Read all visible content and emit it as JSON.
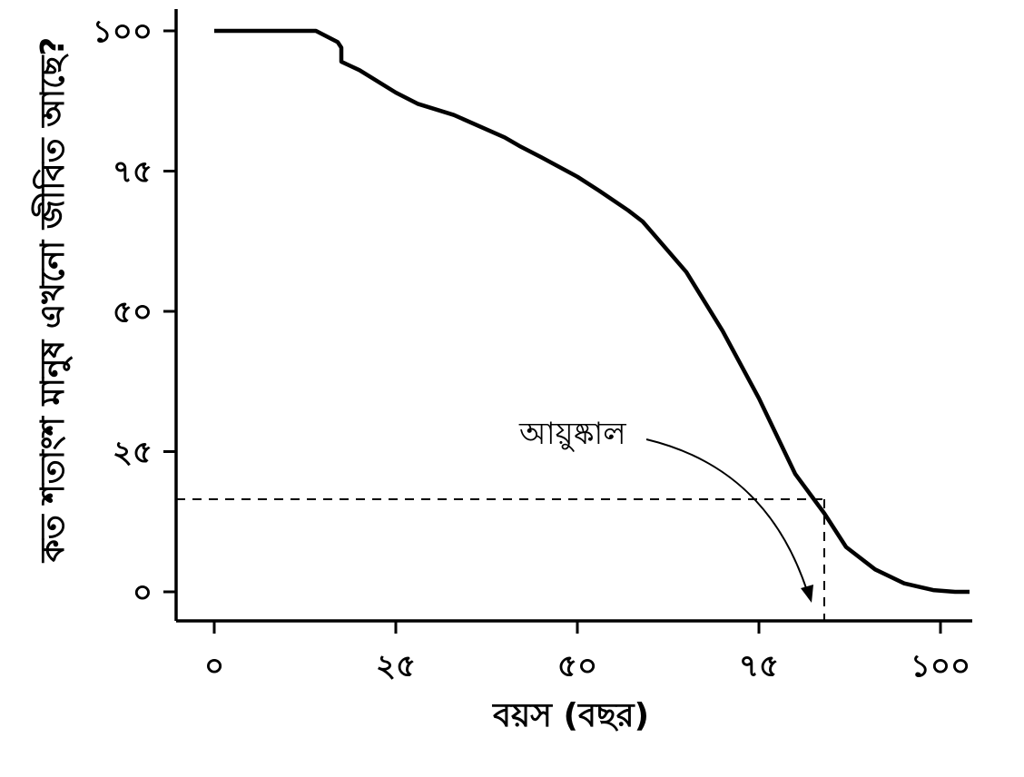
{
  "chart_data": {
    "type": "line",
    "title": "",
    "xlabel": "বয়স (বছর)",
    "ylabel": "কত শতাংশ মানুষ এখনো জীবিত আছে?",
    "xlim": [
      -10,
      104
    ],
    "ylim": [
      -5,
      104
    ],
    "x_ticks": [
      0,
      25,
      50,
      75,
      100
    ],
    "x_tick_labels": [
      "০",
      "২৫",
      "৫০",
      "৭৫",
      "১০০"
    ],
    "y_ticks": [
      0,
      25,
      50,
      75,
      100
    ],
    "y_tick_labels": [
      "০",
      "২৫",
      "৫০",
      "৭৫",
      "১০০"
    ],
    "grid": false,
    "series": [
      {
        "x": [
          0,
          14,
          17,
          17.5,
          17.5,
          20,
          25,
          28,
          33,
          40,
          42,
          45,
          50,
          53,
          57,
          59,
          65,
          70,
          75,
          80,
          84,
          87,
          91,
          95,
          99,
          102,
          104
        ],
        "y": [
          100,
          100,
          98,
          97,
          94.5,
          93,
          89,
          87,
          85,
          81,
          79.5,
          77.5,
          74,
          71.5,
          68,
          66,
          57,
          46.5,
          34.5,
          21,
          14,
          8,
          4,
          1.5,
          0.3,
          0,
          0
        ]
      }
    ],
    "color": "#000000",
    "annotations": [
      {
        "text": "আয়ুষ্কাল",
        "target_x": 84,
        "target_y": 16.5,
        "style": "dashed guide lines from axes to curve with curved arrow to x-axis"
      }
    ]
  }
}
